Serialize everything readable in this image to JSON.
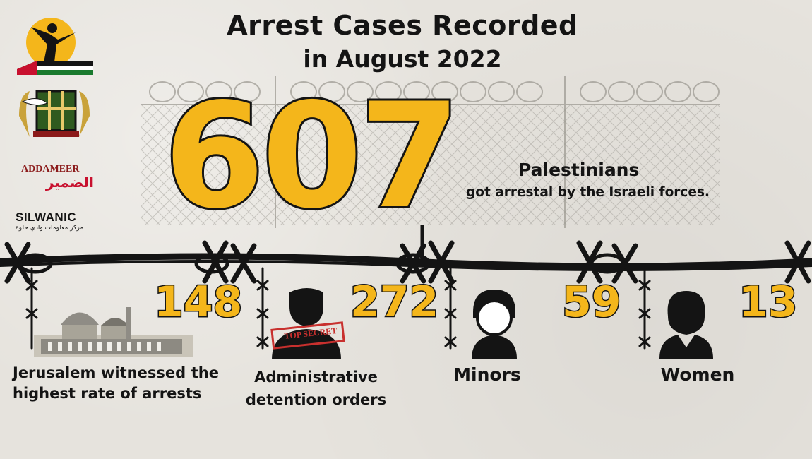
{
  "title": {
    "line1": "Arrest Cases Recorded",
    "line2": "in August 2022"
  },
  "headline": {
    "number": "607",
    "label": "Palestinians",
    "sublabel": "got arrestal by the Israeli forces."
  },
  "stats": [
    {
      "number": "148",
      "label": "Jerusalem witnessed the highest rate of arrests",
      "icon": "al-aqsa-mosque-icon"
    },
    {
      "number": "272",
      "label": "Administrative detention orders",
      "icon": "top-secret-man-icon",
      "stamp": "TOP SECRET"
    },
    {
      "number": "59",
      "label": "Minors",
      "icon": "boy-icon"
    },
    {
      "number": "13",
      "label": "Women",
      "icon": "woman-icon"
    }
  ],
  "logos": {
    "addameer_text": "ADDAMEER",
    "addameer_arabic": "الضمير",
    "silwan_text": "SILWANIC",
    "silwan_arabic": "مركز معلومات وادي حلوة"
  },
  "colors": {
    "accent": "#f4b61b",
    "ink": "#141414",
    "background": "#e6e3dd"
  }
}
